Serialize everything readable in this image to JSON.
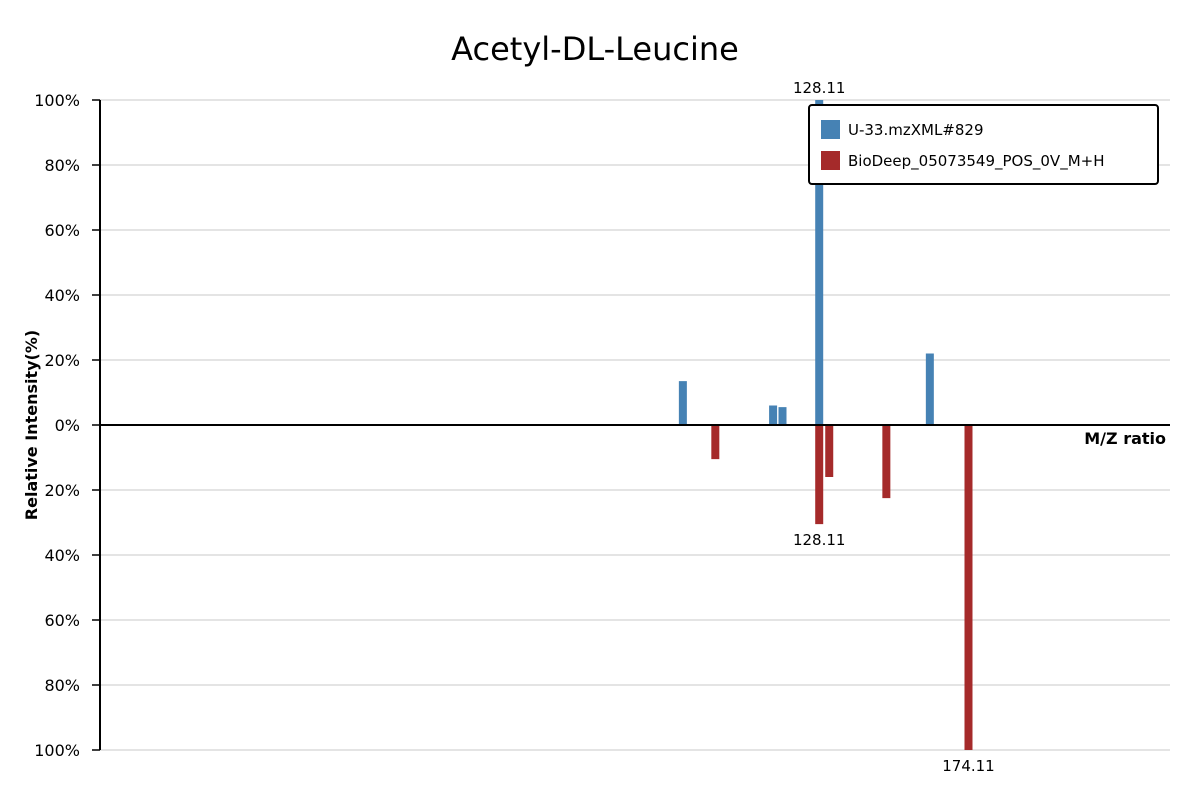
{
  "chart_data": {
    "type": "bar",
    "title": "Acetyl-DL-Leucine",
    "xlabel": "M/Z ratio",
    "ylabel": "Relative Intensity(%)",
    "ylim": [
      -100,
      100
    ],
    "y_ticks": [
      "100%",
      "80%",
      "60%",
      "40%",
      "20%",
      "0%",
      "20%",
      "40%",
      "60%",
      "80%",
      "100%"
    ],
    "grid": true,
    "legend_position": "top-right",
    "series": [
      {
        "name": "U-33.mzXML#829",
        "color": "#4682b4",
        "direction": "up",
        "peaks": [
          {
            "mz": 86.1,
            "intensity": 13.5
          },
          {
            "mz": 113.9,
            "intensity": 6
          },
          {
            "mz": 116.8,
            "intensity": 5.5
          },
          {
            "mz": 128.11,
            "intensity": 100,
            "label": "128.11"
          },
          {
            "mz": 162.2,
            "intensity": 22
          }
        ]
      },
      {
        "name": "BioDeep_05073549_POS_0V_M+H",
        "color": "#a52a2a",
        "direction": "down",
        "peaks": [
          {
            "mz": 96.1,
            "intensity": 10.5
          },
          {
            "mz": 128.11,
            "intensity": 30.5,
            "label": "128.11"
          },
          {
            "mz": 131.2,
            "intensity": 16
          },
          {
            "mz": 148.8,
            "intensity": 22.5
          },
          {
            "mz": 174.11,
            "intensity": 100,
            "label": "174.11"
          }
        ]
      }
    ],
    "x_range": [
      -93.5,
      236.2
    ]
  }
}
